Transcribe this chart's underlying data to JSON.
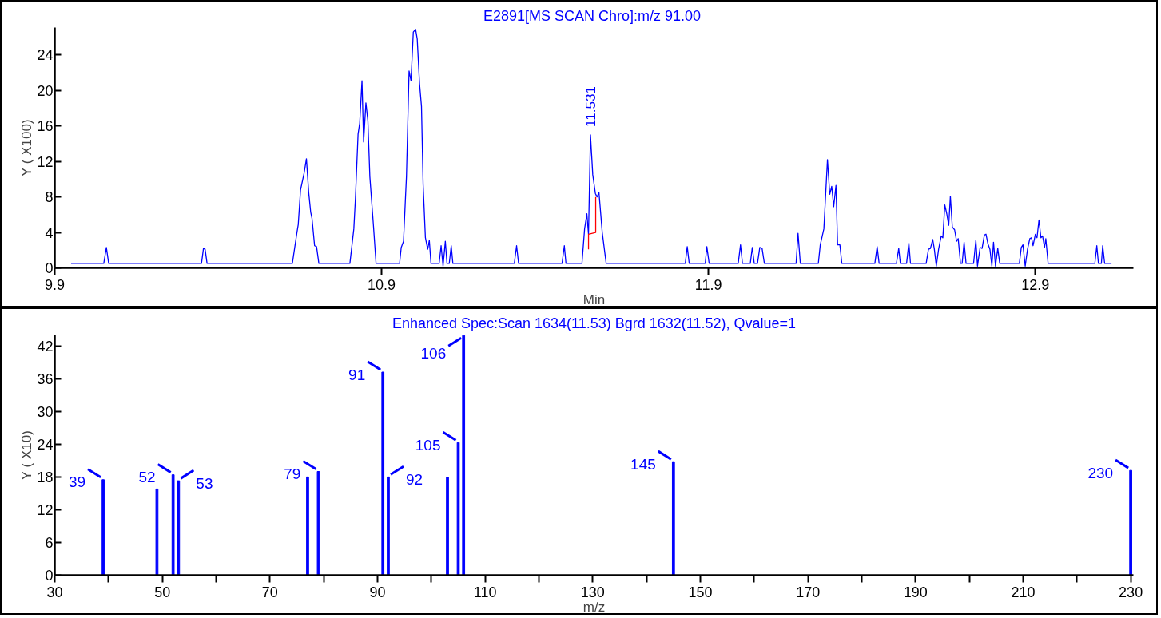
{
  "chart_data": [
    {
      "type": "line",
      "title": "E2891[MS SCAN Chro]:m/z  91.00",
      "xlabel": "Min",
      "ylabel": "Y ( X100)",
      "xlim": [
        9.9,
        13.2
      ],
      "ylim": [
        0,
        27.1
      ],
      "xticks": [
        9.9,
        10.9,
        11.9,
        12.9
      ],
      "yticks": [
        0,
        4,
        8,
        12,
        16,
        20,
        24
      ],
      "series": [
        {
          "color": "#0000ff",
          "x": [
            9.95,
            10.05,
            10.058,
            10.065,
            10.349,
            10.355,
            10.36,
            10.366,
            10.627,
            10.641,
            10.645,
            10.652,
            10.663,
            10.67,
            10.677,
            10.683,
            10.687,
            10.695,
            10.701,
            10.708,
            10.803,
            10.815,
            10.82,
            10.828,
            10.833,
            10.84,
            10.845,
            10.852,
            10.858,
            10.864,
            10.875,
            10.883,
            10.955,
            10.96,
            10.967,
            10.976,
            10.984,
            10.99,
            10.997,
            11.004,
            11.009,
            11.016,
            11.022,
            11.027,
            11.034,
            11.041,
            11.046,
            11.051,
            11.076,
            11.082,
            11.088,
            11.095,
            11.1,
            11.107,
            11.113,
            11.118,
            11.306,
            11.313,
            11.319,
            11.452,
            11.459,
            11.464,
            11.513,
            11.521,
            11.528,
            11.533,
            11.539,
            11.546,
            11.554,
            11.559,
            11.565,
            11.575,
            11.587,
            11.829,
            11.835,
            11.841,
            11.89,
            11.895,
            11.902,
            11.991,
            11.998,
            12.004,
            12.028,
            12.034,
            12.04,
            12.05,
            12.057,
            12.064,
            12.071,
            12.168,
            12.174,
            12.181,
            12.236,
            12.242,
            12.253,
            12.264,
            12.271,
            12.277,
            12.283,
            12.29,
            12.295,
            12.302,
            12.308,
            12.409,
            12.416,
            12.422,
            12.475,
            12.482,
            12.487,
            12.506,
            12.513,
            12.518,
            12.566,
            12.573,
            12.579,
            12.586,
            12.591,
            12.597,
            12.604,
            12.612,
            12.617,
            12.623,
            12.629,
            12.635,
            12.64,
            12.646,
            12.653,
            12.659,
            12.664,
            12.671,
            12.676,
            12.682,
            12.688,
            12.711,
            12.718,
            12.723,
            12.731,
            12.737,
            12.744,
            12.749,
            12.755,
            12.761,
            12.767,
            12.772,
            12.778,
            12.785,
            12.791,
            12.851,
            12.857,
            12.862,
            12.869,
            12.876,
            12.883,
            12.888,
            12.893,
            12.9,
            12.905,
            12.911,
            12.917,
            12.922,
            12.928,
            12.932,
            12.939,
            13.082,
            13.088,
            13.093,
            13.102,
            13.106,
            13.112,
            13.133
          ],
          "values": [
            0.5,
            0.5,
            2.3,
            0.5,
            0.5,
            2.2,
            2.1,
            0.5,
            0.5,
            4.0,
            4.9,
            8.8,
            10.7,
            12.3,
            8.5,
            6.3,
            5.6,
            2.5,
            2.4,
            0.5,
            0.5,
            4.4,
            7.9,
            15.1,
            16.3,
            21.1,
            14.2,
            18.6,
            16.6,
            10.3,
            4.8,
            0.5,
            0.5,
            2.3,
            3.0,
            10.3,
            22.2,
            21.1,
            26.6,
            26.9,
            25.8,
            20.8,
            18.2,
            9.4,
            3.4,
            2.1,
            3.1,
            0.5,
            0.5,
            2.5,
            0.2,
            3.0,
            0.5,
            0.5,
            2.5,
            0.5,
            0.5,
            2.5,
            0.5,
            0.5,
            2.5,
            0.5,
            0.5,
            4.4,
            6.1,
            3.8,
            15.0,
            10.5,
            8.4,
            8.0,
            8.5,
            4.0,
            0.5,
            0.5,
            2.4,
            0.5,
            0.5,
            2.4,
            0.5,
            0.5,
            2.6,
            0.5,
            0.5,
            2.3,
            0.5,
            0.5,
            2.3,
            2.2,
            0.5,
            0.5,
            3.9,
            0.5,
            0.5,
            2.6,
            4.4,
            12.2,
            8.3,
            9.2,
            6.9,
            9.3,
            2.6,
            2.6,
            0.5,
            0.5,
            2.4,
            0.5,
            0.5,
            2.2,
            0.5,
            0.5,
            2.8,
            0.5,
            0.5,
            2.1,
            2.2,
            3.2,
            2.1,
            0.2,
            2.1,
            3.6,
            3.4,
            7.1,
            6.1,
            4.8,
            8.1,
            4.6,
            4.3,
            3.0,
            3.3,
            0.5,
            0.5,
            2.9,
            0.5,
            0.5,
            3.1,
            0.2,
            2.3,
            2.2,
            3.7,
            3.8,
            2.7,
            2.1,
            0.2,
            2.9,
            0.2,
            2.2,
            0.5,
            0.5,
            2.3,
            2.6,
            0.2,
            2.1,
            3.3,
            3.4,
            2.5,
            3.8,
            3.4,
            5.4,
            3.4,
            3.6,
            2.3,
            3.3,
            0.5,
            0.5,
            2.5,
            0.5,
            0.5,
            2.5,
            0.5,
            0.5
          ]
        },
        {
          "color": "#ff0000",
          "x": [
            11.533,
            11.533,
            11.555,
            11.555
          ],
          "values": [
            2.1,
            3.8,
            4.0,
            8.0
          ]
        }
      ],
      "annotations": [
        {
          "text": "11.531",
          "x": 11.539,
          "y": 15.0
        }
      ]
    },
    {
      "type": "bar",
      "title": "Enhanced Spec:Scan 1634(11.53) Bgrd 1632(11.52), Qvalue=1",
      "xlabel": "m/z",
      "ylabel": "Y ( X10)",
      "xlim": [
        30,
        230.5
      ],
      "ylim": [
        0,
        44
      ],
      "xticks": [
        30,
        {
          "value": 40,
          "label": null
        },
        50,
        {
          "value": 60,
          "label": null
        },
        70,
        {
          "value": 80,
          "label": null
        },
        90,
        {
          "value": 100,
          "label": null
        },
        110,
        {
          "value": 120,
          "label": null
        },
        130,
        {
          "value": 140,
          "label": null
        },
        150,
        {
          "value": 160,
          "label": null
        },
        170,
        {
          "value": 180,
          "label": null
        },
        190,
        {
          "value": 200,
          "label": null
        },
        210,
        {
          "value": 220,
          "label": null
        },
        230
      ],
      "yticks": [
        0,
        6,
        12,
        18,
        24,
        30,
        36,
        42
      ],
      "x": [
        39,
        49,
        52,
        53,
        77,
        79,
        91,
        92,
        103,
        105,
        106,
        145,
        230
      ],
      "series": [
        {
          "color": "#0000ff",
          "values": [
            17.5,
            15.8,
            18.4,
            17.3,
            18.0,
            19.0,
            37.2,
            18.0,
            17.9,
            24.3,
            43.9,
            20.8,
            19.2
          ]
        }
      ],
      "annotations": [
        {
          "text": "39",
          "x": 39,
          "y": 17.5
        },
        {
          "text": "52",
          "x": 52,
          "y": 18.4
        },
        {
          "text": "53",
          "x": 53,
          "y": 17.3
        },
        {
          "text": "79",
          "x": 79,
          "y": 19.0
        },
        {
          "text": "91",
          "x": 91,
          "y": 37.2
        },
        {
          "text": "92",
          "x": 92,
          "y": 18.0
        },
        {
          "text": "105",
          "x": 105,
          "y": 24.3
        },
        {
          "text": "106",
          "x": 106,
          "y": 43.9
        },
        {
          "text": "145",
          "x": 145,
          "y": 20.8
        },
        {
          "text": "230",
          "x": 230,
          "y": 19.2
        }
      ]
    }
  ]
}
